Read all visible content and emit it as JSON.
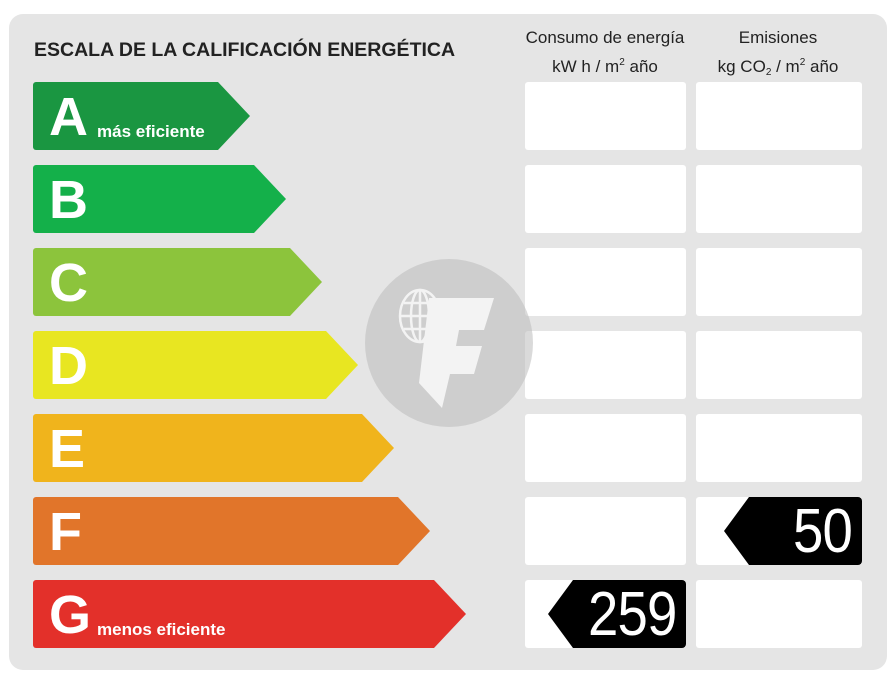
{
  "header": {
    "title": "ESCALA DE LA CALIFICACIÓN ENERGÉTICA",
    "energy_col": {
      "line1": "Consumo de energía",
      "unit_a": "kW h  / m",
      "unit_sup": "2",
      "unit_b": " año"
    },
    "emission_col": {
      "line1": "Emisiones",
      "unit_a": "kg CO",
      "unit_sub": "2",
      "unit_b": "  / m",
      "unit_sup": "2",
      "unit_c": " año"
    }
  },
  "ratings": [
    {
      "letter": "A",
      "note": "más eficiente",
      "color": "#1a9641"
    },
    {
      "letter": "B",
      "note": "",
      "color": "#14b04a"
    },
    {
      "letter": "C",
      "note": "",
      "color": "#8cc43c"
    },
    {
      "letter": "D",
      "note": "",
      "color": "#e8e621"
    },
    {
      "letter": "E",
      "note": "",
      "color": "#f0b41c"
    },
    {
      "letter": "F",
      "note": "",
      "color": "#e1752a"
    },
    {
      "letter": "G",
      "note": "menos eficiente",
      "color": "#e3302a"
    }
  ],
  "energy_value": {
    "rating": "G",
    "value": "259"
  },
  "emission_value": {
    "rating": "F",
    "value": "50"
  },
  "watermark": {
    "icon": "globe-letter-f-logo"
  }
}
